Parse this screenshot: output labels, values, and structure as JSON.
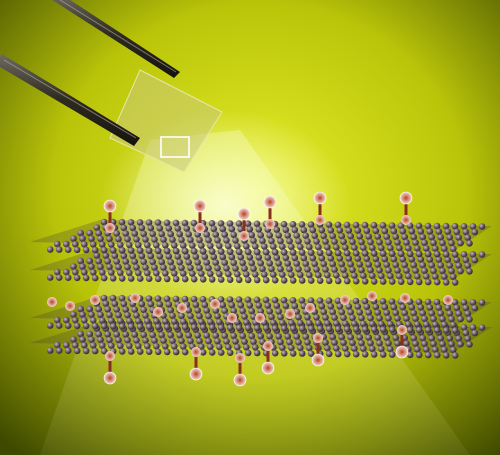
{
  "scene": {
    "background": {
      "center": "#e7ef2a",
      "mid": "#b9c409",
      "edge": "#3f4a00"
    },
    "beam_color": "#fbffd8",
    "tweezers_color": "#2e2a20",
    "flake_color": "#c9c978",
    "carbon_color": "#5c4e58",
    "carbon_highlight": "#c9b6c2",
    "adatom_color": "#e9d7d5",
    "adatom_core": "#b5431f",
    "bond_color": "#8a2f1c"
  },
  "graphene_layers": [
    {
      "name": "top",
      "adatoms": "up"
    },
    {
      "name": "second",
      "adatoms": "none"
    },
    {
      "name": "third",
      "adatoms": "between"
    },
    {
      "name": "bottom",
      "adatoms": "down"
    }
  ]
}
